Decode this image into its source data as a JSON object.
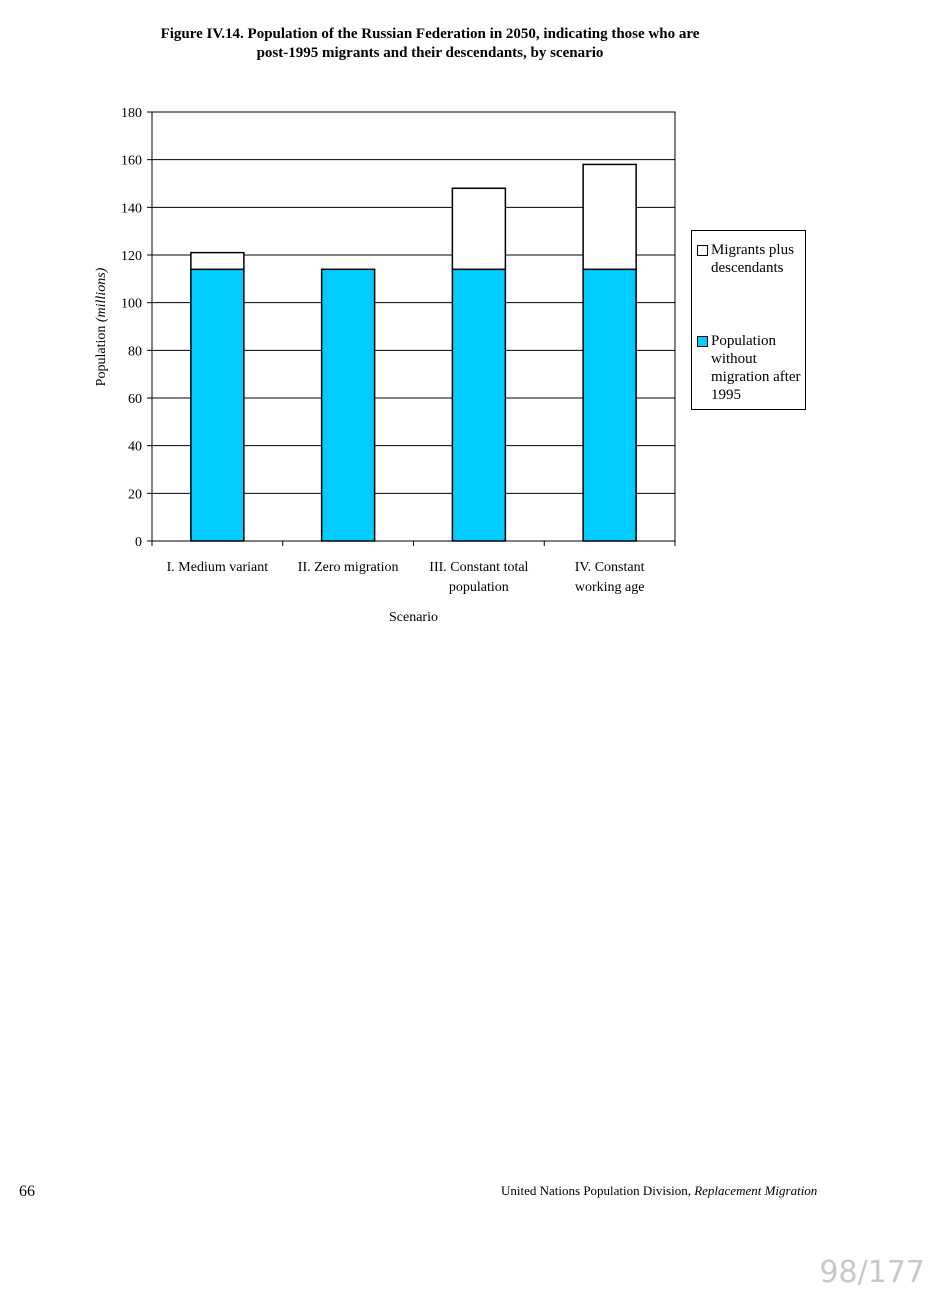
{
  "title": {
    "line1": "Figure IV.14.  Population of the Russian Federation in 2050, indicating those who are",
    "line2": "post-1995 migrants and their descendants, by scenario"
  },
  "chart_data": {
    "type": "bar",
    "stacked": true,
    "categories": [
      [
        "I. Medium variant"
      ],
      [
        "II. Zero migration"
      ],
      [
        "III. Constant total",
        "population"
      ],
      [
        "IV. Constant",
        "working age"
      ]
    ],
    "series": [
      {
        "name": "Population without migration after 1995",
        "values": [
          114,
          114,
          114,
          114
        ],
        "color": "#00ccff"
      },
      {
        "name": "Migrants plus descendants",
        "values": [
          7,
          0,
          34,
          44
        ],
        "color": "#ffffff"
      }
    ],
    "xlabel": "Scenario",
    "ylabel": "Population",
    "ylabel_unit": "(millions)",
    "ylim": [
      0,
      180
    ],
    "yticks": [
      0,
      20,
      40,
      60,
      80,
      100,
      120,
      140,
      160,
      180
    ],
    "grid": true,
    "legend_position": "right"
  },
  "legend": {
    "items": [
      {
        "lines": [
          "Migrants plus",
          "descendants"
        ],
        "color": "#ffffff"
      },
      {
        "lines": [
          "Population",
          "without",
          "migration after",
          "1995"
        ],
        "color": "#00ccff"
      }
    ]
  },
  "footer": {
    "page_number": "66",
    "source": "United Nations Population Division,",
    "source_italic": "Replacement Migration"
  },
  "viewer": {
    "page_counter": "98/177"
  }
}
